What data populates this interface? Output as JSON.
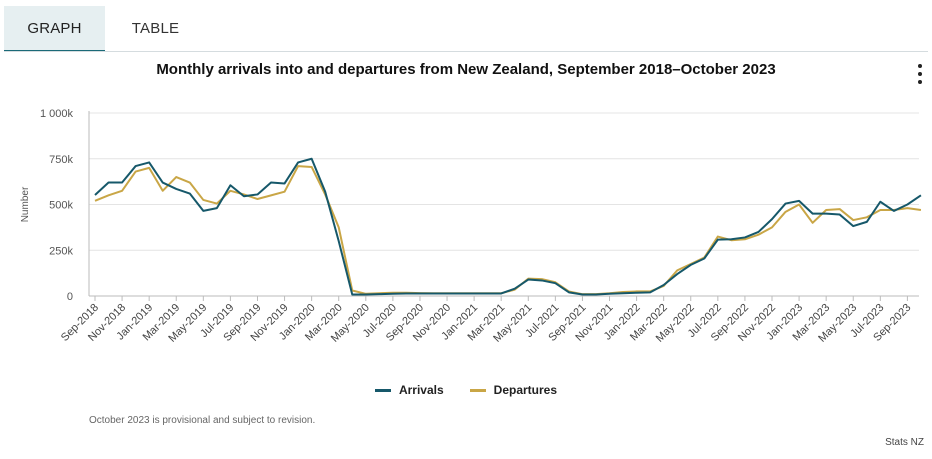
{
  "tabs": [
    {
      "label": "GRAPH",
      "active": true
    },
    {
      "label": "TABLE",
      "active": false
    }
  ],
  "menu_icon": "more-vertical-icon",
  "footnote": "October 2023 is provisional and subject to revision.",
  "source": "Stats NZ",
  "colors": {
    "arrivals": "#16586a",
    "departures": "#c9a646",
    "grid": "#e4e4e4",
    "axis": "#bbbbbb"
  },
  "chart_data": {
    "type": "line",
    "title": "Monthly arrivals into and departures from New Zealand, September 2018–October 2023",
    "ylabel": "Number",
    "xlabel": "",
    "ylim": [
      0,
      1000000
    ],
    "yticks": [
      0,
      250000,
      500000,
      750000,
      1000000
    ],
    "ytick_labels": [
      "0",
      "250k",
      "500k",
      "750k",
      "1 000k"
    ],
    "xtick_labels": [
      "Sep-2018",
      "Nov-2018",
      "Jan-2019",
      "Mar-2019",
      "May-2019",
      "Jul-2019",
      "Sep-2019",
      "Nov-2019",
      "Jan-2020",
      "Mar-2020",
      "May-2020",
      "Jul-2020",
      "Sep-2020",
      "Nov-2020",
      "Jan-2021",
      "Mar-2021",
      "May-2021",
      "Jul-2021",
      "Sep-2021",
      "Nov-2021",
      "Jan-2022",
      "Mar-2022",
      "May-2022",
      "Jul-2022",
      "Sep-2022",
      "Nov-2022",
      "Jan-2023",
      "Mar-2023",
      "May-2023",
      "Jul-2023",
      "Sep-2023"
    ],
    "x": [
      "Sep-2018",
      "Oct-2018",
      "Nov-2018",
      "Dec-2018",
      "Jan-2019",
      "Feb-2019",
      "Mar-2019",
      "Apr-2019",
      "May-2019",
      "Jun-2019",
      "Jul-2019",
      "Aug-2019",
      "Sep-2019",
      "Oct-2019",
      "Nov-2019",
      "Dec-2019",
      "Jan-2020",
      "Feb-2020",
      "Mar-2020",
      "Apr-2020",
      "May-2020",
      "Jun-2020",
      "Jul-2020",
      "Aug-2020",
      "Sep-2020",
      "Oct-2020",
      "Nov-2020",
      "Dec-2020",
      "Jan-2021",
      "Feb-2021",
      "Mar-2021",
      "Apr-2021",
      "May-2021",
      "Jun-2021",
      "Jul-2021",
      "Aug-2021",
      "Sep-2021",
      "Oct-2021",
      "Nov-2021",
      "Dec-2021",
      "Jan-2022",
      "Feb-2022",
      "Mar-2022",
      "Apr-2022",
      "May-2022",
      "Jun-2022",
      "Jul-2022",
      "Aug-2022",
      "Sep-2022",
      "Oct-2022",
      "Nov-2022",
      "Dec-2022",
      "Jan-2023",
      "Feb-2023",
      "Mar-2023",
      "Apr-2023",
      "May-2023",
      "Jun-2023",
      "Jul-2023",
      "Aug-2023",
      "Sep-2023",
      "Oct-2023"
    ],
    "legend_position": "bottom",
    "grid": true,
    "series": [
      {
        "name": "Arrivals",
        "color": "#16586a",
        "values": [
          552000,
          620000,
          620000,
          710000,
          730000,
          620000,
          585000,
          560000,
          465000,
          480000,
          605000,
          545000,
          555000,
          620000,
          615000,
          730000,
          750000,
          570000,
          300000,
          8000,
          8000,
          10000,
          12000,
          14000,
          14000,
          14000,
          14000,
          14000,
          14000,
          14000,
          14000,
          40000,
          90000,
          85000,
          70000,
          20000,
          8000,
          8000,
          12000,
          15000,
          18000,
          20000,
          60000,
          120000,
          170000,
          205000,
          308000,
          310000,
          320000,
          350000,
          420000,
          505000,
          520000,
          450000,
          450000,
          445000,
          382000,
          405000,
          515000,
          465000,
          500000,
          550000
        ]
      },
      {
        "name": "Departures",
        "color": "#c9a646",
        "values": [
          520000,
          550000,
          575000,
          680000,
          700000,
          575000,
          650000,
          620000,
          525000,
          505000,
          575000,
          555000,
          530000,
          550000,
          570000,
          710000,
          705000,
          555000,
          375000,
          30000,
          12000,
          15000,
          18000,
          18000,
          16000,
          15000,
          15000,
          15000,
          15000,
          15000,
          15000,
          35000,
          95000,
          92000,
          75000,
          25000,
          10000,
          10000,
          15000,
          22000,
          25000,
          25000,
          55000,
          140000,
          175000,
          210000,
          325000,
          305000,
          310000,
          335000,
          375000,
          460000,
          500000,
          400000,
          470000,
          475000,
          415000,
          430000,
          470000,
          470000,
          480000,
          470000
        ]
      }
    ]
  }
}
